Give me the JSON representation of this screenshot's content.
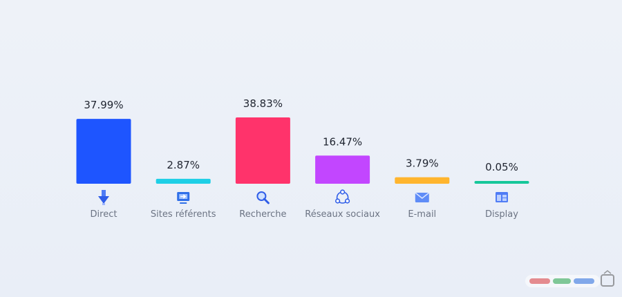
{
  "chart_data": {
    "type": "bar",
    "categories": [
      "Direct",
      "Sites référents",
      "Recherche",
      "Réseaux sociaux",
      "E-mail",
      "Display"
    ],
    "values": [
      37.99,
      2.87,
      38.83,
      16.47,
      3.79,
      0.05
    ],
    "value_labels": [
      "37.99%",
      "2.87%",
      "38.83%",
      "16.47%",
      "3.79%",
      "0.05%"
    ],
    "colors": [
      "#1e55ff",
      "#1ecfe6",
      "#ff336b",
      "#c246ff",
      "#ffb52e",
      "#16c79a"
    ],
    "icons": [
      "arrow-down-icon",
      "referral-screen-icon",
      "magnifier-icon",
      "share-network-icon",
      "envelope-icon",
      "display-window-icon"
    ],
    "ylim": [
      0,
      38.83
    ],
    "title": "",
    "xlabel": "",
    "ylabel": "",
    "grid": false,
    "legend": false
  }
}
